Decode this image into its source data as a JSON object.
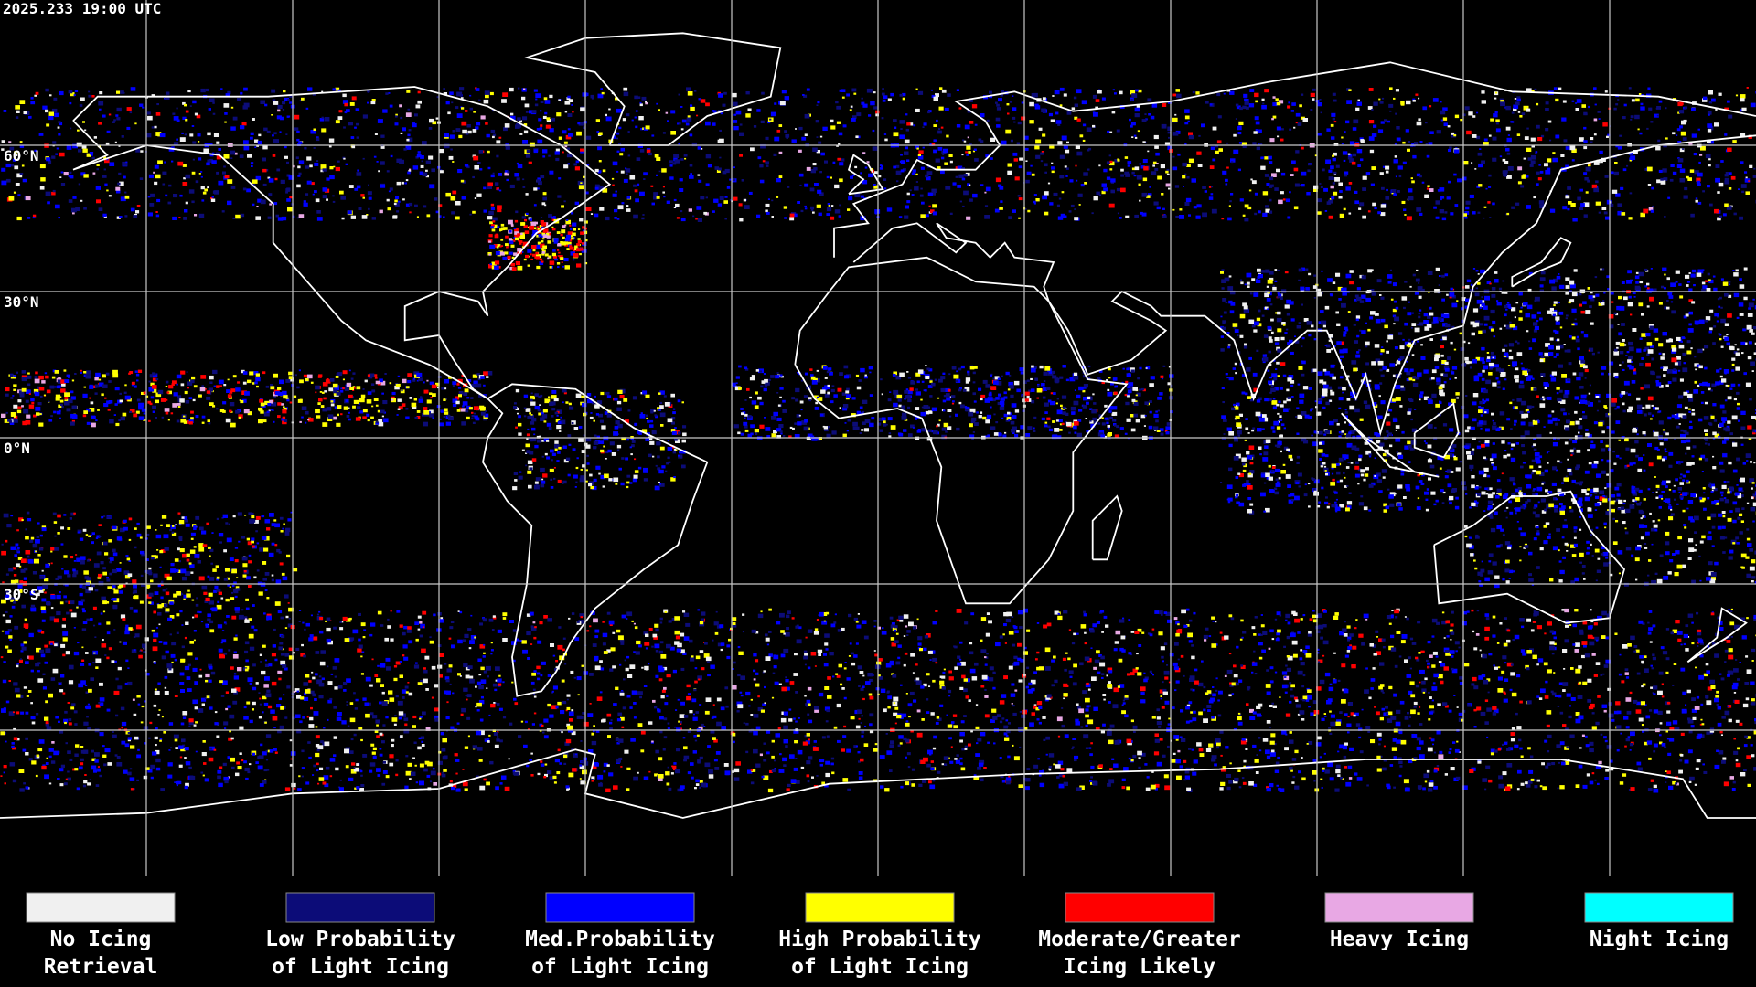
{
  "header": {
    "timestamp": "2025.233 19:00 UTC"
  },
  "map": {
    "lat_labels": [
      "60°N",
      "30°N",
      "0°N",
      "30°S"
    ]
  },
  "legend": [
    {
      "color": "#f0f0f0",
      "line1": "No Icing",
      "line2": "Retrieval"
    },
    {
      "color": "#0c0c78",
      "line1": "Low Probability",
      "line2": "of Light Icing"
    },
    {
      "color": "#0000ff",
      "line1": "Med.Probability",
      "line2": "of Light Icing"
    },
    {
      "color": "#ffff00",
      "line1": "High Probability",
      "line2": "of Light Icing"
    },
    {
      "color": "#ff0000",
      "line1": "Moderate/Greater",
      "line2": "Icing Likely"
    },
    {
      "color": "#e8a8e4",
      "line1": "Heavy Icing"
    },
    {
      "color": "#00ffff",
      "line1": "Night Icing"
    }
  ]
}
